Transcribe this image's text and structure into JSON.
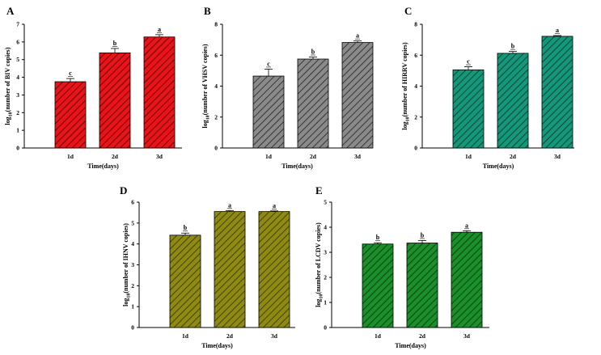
{
  "chart_data": [
    {
      "type": "bar",
      "panel": "A",
      "categories": [
        "1d",
        "2d",
        "3d"
      ],
      "values": [
        3.75,
        5.38,
        6.28
      ],
      "errors": [
        0.18,
        0.25,
        0.13
      ],
      "significance": [
        "c",
        "b",
        "a"
      ],
      "ylim": [
        0,
        7
      ],
      "yticks": [
        0,
        1,
        2,
        3,
        4,
        5,
        6,
        7
      ],
      "xlabel": "Time(days)",
      "ylabel_pre": "log",
      "ylabel_sub": "10",
      "ylabel_post": "(number of BIV copies)",
      "fill": "#e8141a",
      "hatch": "#5a0000"
    },
    {
      "type": "bar",
      "panel": "B",
      "categories": [
        "1d",
        "2d",
        "3d"
      ],
      "values": [
        4.65,
        5.75,
        6.82
      ],
      "errors": [
        0.45,
        0.13,
        0.1
      ],
      "significance": [
        "c",
        "b",
        "a"
      ],
      "ylim": [
        0,
        8
      ],
      "yticks": [
        0,
        2,
        4,
        6,
        8
      ],
      "xlabel": "Time(days)",
      "ylabel_pre": "log",
      "ylabel_sub": "10",
      "ylabel_post": "(number of VHSV copies)",
      "fill": "#8a8a8a",
      "hatch": "#2e2e2e"
    },
    {
      "type": "bar",
      "panel": "C",
      "categories": [
        "1d",
        "2d",
        "3d"
      ],
      "values": [
        5.05,
        6.12,
        7.22
      ],
      "errors": [
        0.2,
        0.12,
        0.05
      ],
      "significance": [
        "c",
        "b",
        "a"
      ],
      "ylim": [
        0,
        8
      ],
      "yticks": [
        0,
        2,
        4,
        6,
        8
      ],
      "xlabel": "Time(days)",
      "ylabel_pre": "log",
      "ylabel_sub": "10",
      "ylabel_post": "(number of HIRRV copies)",
      "fill": "#15977a",
      "hatch": "#063a2d"
    },
    {
      "type": "bar",
      "panel": "D",
      "categories": [
        "1d",
        "2d",
        "3d"
      ],
      "values": [
        4.42,
        5.55,
        5.55
      ],
      "errors": [
        0.1,
        0.05,
        0.03
      ],
      "significance": [
        "b",
        "a",
        "a"
      ],
      "ylim": [
        0,
        6
      ],
      "yticks": [
        0,
        1,
        2,
        3,
        4,
        5,
        6
      ],
      "xlabel": "Time(days)",
      "ylabel_pre": "log",
      "ylabel_sub": "10",
      "ylabel_post": "(number of IHNV copies)",
      "fill": "#8f8a12",
      "hatch": "#3a3705"
    },
    {
      "type": "bar",
      "panel": "E",
      "categories": [
        "1d",
        "2d",
        "3d"
      ],
      "values": [
        3.33,
        3.37,
        3.8
      ],
      "errors": [
        0.05,
        0.1,
        0.06
      ],
      "significance": [
        "b",
        "b",
        "a"
      ],
      "ylim": [
        0,
        5
      ],
      "yticks": [
        0,
        1,
        2,
        3,
        4,
        5
      ],
      "xlabel": "Time(days)",
      "ylabel_pre": "log",
      "ylabel_sub": "10",
      "ylabel_post": "(number of LCDV copies)",
      "fill": "#1b8f2a",
      "hatch": "#063a0e"
    }
  ]
}
